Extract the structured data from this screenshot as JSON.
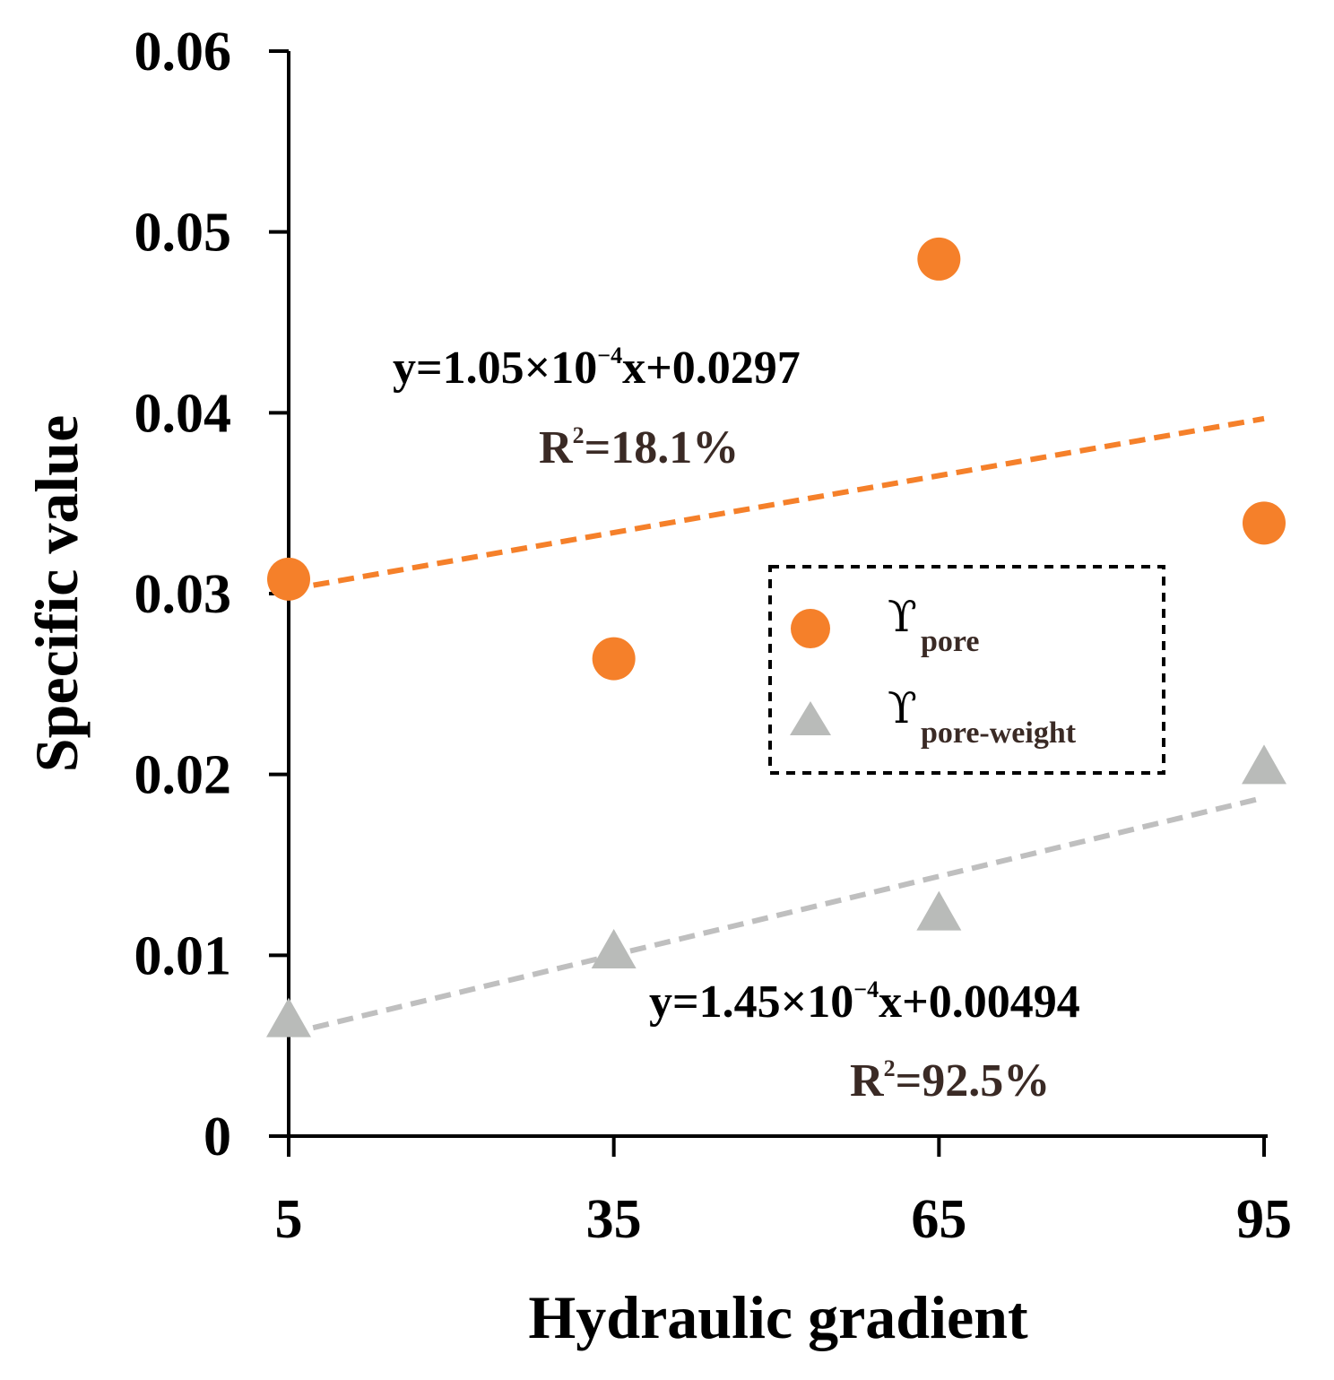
{
  "chart_data": {
    "type": "scatter",
    "title": "",
    "xlabel": "Hydraulic gradient",
    "ylabel": "Specific value",
    "x_ticks": [
      "5",
      "35",
      "65",
      "95"
    ],
    "y_ticks": [
      "0",
      "0.01",
      "0.02",
      "0.03",
      "0.04",
      "0.05",
      "0.06"
    ],
    "xlim": [
      5,
      95
    ],
    "ylim": [
      0,
      0.06
    ],
    "grid": false,
    "legend_position": "right-center",
    "series": [
      {
        "name_symbol": "ϒ",
        "name_sub": "pore",
        "marker": "circle",
        "color": "#f5802a",
        "x": [
          5,
          35,
          65,
          95
        ],
        "y": [
          0.0308,
          0.0264,
          0.0485,
          0.0339
        ],
        "trendline": {
          "slope": 0.000105,
          "intercept": 0.0297,
          "color": "#f5802a",
          "equation_prefix": "y=1.05×10",
          "equation_exp": "−4",
          "equation_suffix": "x+0.0297",
          "r2_prefix": "R",
          "r2_exp": "2",
          "r2_value": "=18.1%"
        }
      },
      {
        "name_symbol": "ϒ",
        "name_sub": "pore-weight",
        "marker": "triangle",
        "color": "#b9bbb9",
        "x": [
          5,
          35,
          65,
          95
        ],
        "y": [
          0.0063,
          0.0101,
          0.0122,
          0.0203
        ],
        "trendline": {
          "slope": 0.000145,
          "intercept": 0.00494,
          "color": "#bfbfbf",
          "equation_prefix": "y=1.45×10",
          "equation_exp": "−4",
          "equation_suffix": "x+0.00494",
          "r2_prefix": "R",
          "r2_exp": "2",
          "r2_value": "=92.5%"
        }
      }
    ]
  }
}
